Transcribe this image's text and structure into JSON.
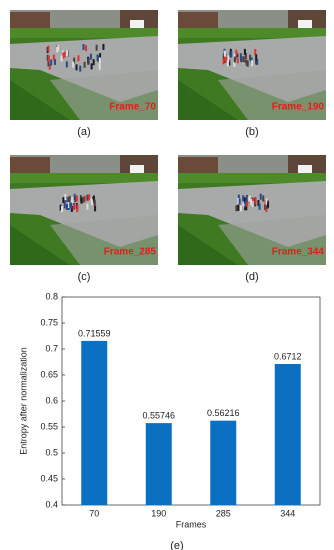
{
  "panels": [
    {
      "caption": "(a)",
      "frame_label": "Frame_70"
    },
    {
      "caption": "(b)",
      "frame_label": "Frame_190"
    },
    {
      "caption": "(c)",
      "frame_label": "Frame_285"
    },
    {
      "caption": "(d)",
      "frame_label": "Frame_344"
    }
  ],
  "chart_data": {
    "type": "bar",
    "caption": "(e)",
    "x_label": "Frames",
    "y_label": "Entropy after normalization",
    "categories": [
      "70",
      "190",
      "285",
      "344"
    ],
    "values": [
      0.71559,
      0.55746,
      0.56216,
      0.6712
    ],
    "color": "#0b6fc2",
    "ylim": [
      0.4,
      0.8
    ],
    "yticks": [
      0.4,
      0.45,
      0.5,
      0.55,
      0.6,
      0.65,
      0.7,
      0.75,
      0.8
    ]
  }
}
